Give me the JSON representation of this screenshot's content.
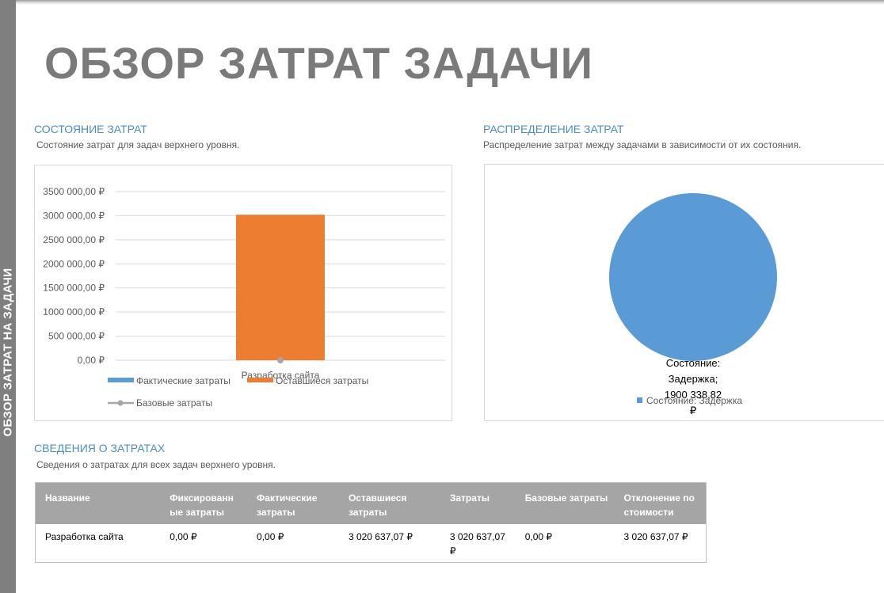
{
  "sidebar": {
    "label": "ОБЗОР ЗАТРАТ НА ЗАДАЧИ"
  },
  "page": {
    "title": "ОБЗОР ЗАТРАТ ЗАДАЧИ"
  },
  "cost_status": {
    "title": "СОСТОЯНИЕ ЗАТРАТ",
    "subtitle": "Состояние затрат для задач верхнего уровня."
  },
  "cost_distribution": {
    "title": "РАСПРЕДЕЛЕНИЕ ЗАТРАТ",
    "subtitle": "Распределение затрат между задачами в зависимости от их состояния."
  },
  "cost_details": {
    "title": "СВЕДЕНИЯ О ЗАТРАТАХ",
    "subtitle": "Сведения о затратах для всех задач верхнего уровня."
  },
  "colors": {
    "actual": "#5b9bd5",
    "remaining": "#ed7d31",
    "baseline": "#a5a5a5",
    "accent": "#4b8cc8",
    "title_gray": "#7a7a7a"
  },
  "chart_data": [
    {
      "type": "bar",
      "stacked": true,
      "categories": [
        "Разработка сайта"
      ],
      "series": [
        {
          "name": "Фактические затраты",
          "kind": "bar",
          "values": [
            0
          ]
        },
        {
          "name": "Оставшиеся затраты",
          "kind": "bar",
          "values": [
            3020637.07
          ]
        },
        {
          "name": "Базовые затраты",
          "kind": "line",
          "values": [
            0
          ]
        }
      ],
      "y_ticks": [
        "0,00 ₽",
        "500 000,00 ₽",
        "1000 000,00 ₽",
        "1500 000,00 ₽",
        "2000 000,00 ₽",
        "2500 000,00 ₽",
        "3000 000,00 ₽",
        "3500 000,00 ₽"
      ],
      "ylim": [
        0,
        3500000
      ],
      "grid": true,
      "legend_position": "bottom"
    },
    {
      "type": "pie",
      "slices": [
        {
          "name": "Состояние: Задержка",
          "value": 1900338.82,
          "label": "Состояние: Задержка; 1900 338,82 ₽"
        }
      ],
      "legend_position": "bottom"
    }
  ],
  "table": {
    "headers": [
      "Название",
      "Фиксированные затраты",
      "Фактические затраты",
      "Оставшиеся затраты",
      "Затраты",
      "Базовые затраты",
      "Отклонение по стоимости"
    ],
    "rows": [
      [
        "Разработка сайта",
        "0,00 ₽",
        "0,00 ₽",
        "3 020 637,07 ₽",
        "3 020 637,07 ₽",
        "0,00 ₽",
        "3 020 637,07 ₽"
      ]
    ]
  }
}
